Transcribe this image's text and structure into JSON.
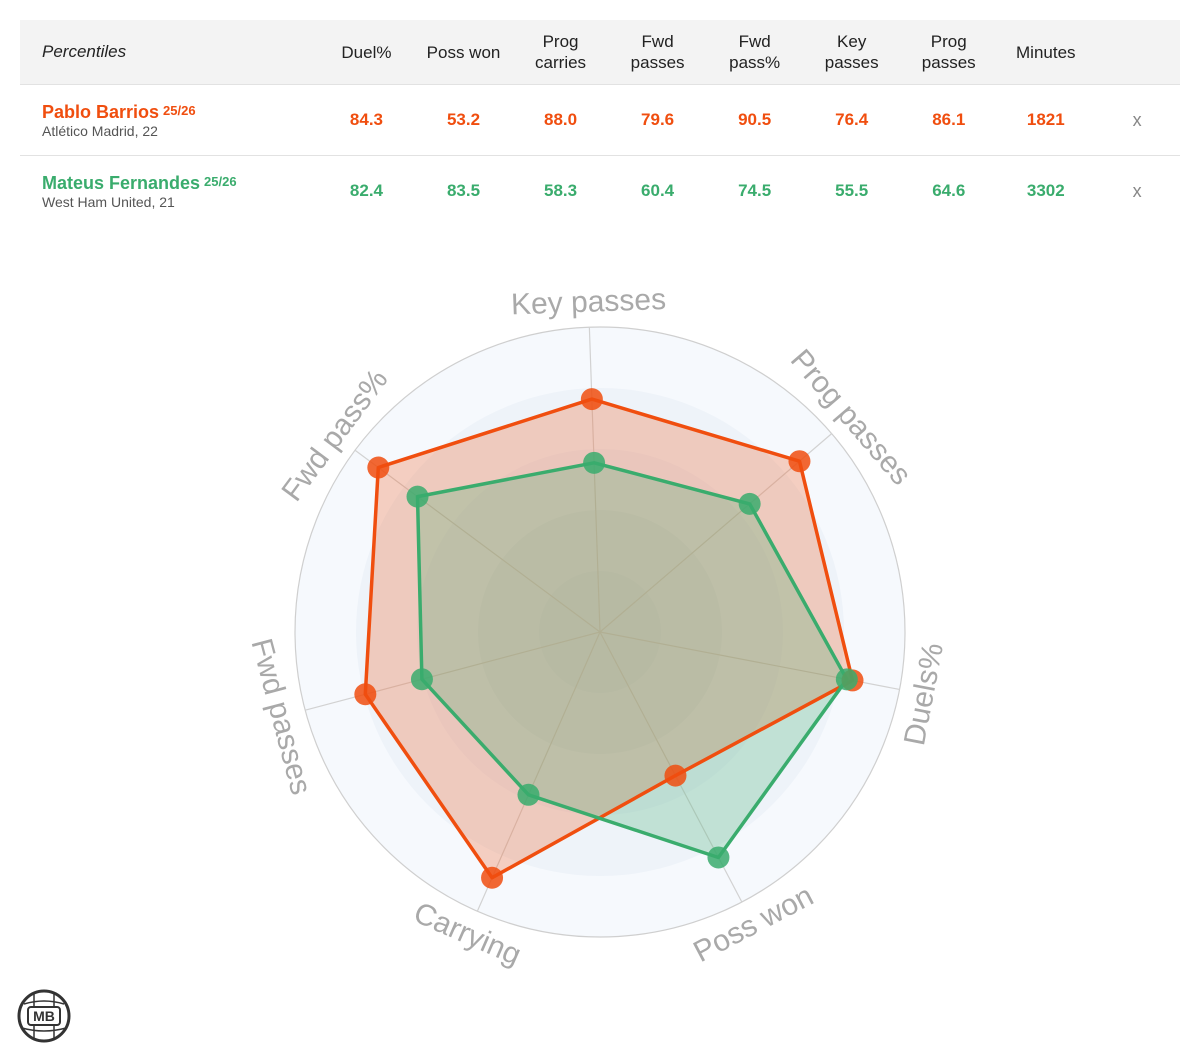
{
  "table": {
    "corner_label": "Percentiles",
    "headers": [
      [
        "Duel%"
      ],
      [
        "Poss won"
      ],
      [
        "Prog",
        "carries"
      ],
      [
        "Fwd",
        "passes"
      ],
      [
        "Fwd",
        "pass%"
      ],
      [
        "Key",
        "passes"
      ],
      [
        "Prog",
        "passes"
      ],
      [
        "Minutes"
      ]
    ],
    "players": [
      {
        "name": "Pablo Barrios",
        "season": "25/26",
        "team": "Atlético Madrid, 22",
        "values": [
          "84.3",
          "53.2",
          "88.0",
          "79.6",
          "90.5",
          "76.4",
          "86.1",
          "1821"
        ],
        "remove": "x",
        "color": "#f04e0f"
      },
      {
        "name": "Mateus Fernandes",
        "season": "25/26",
        "team": "West Ham United, 21",
        "values": [
          "82.4",
          "83.5",
          "58.3",
          "60.4",
          "74.5",
          "55.5",
          "64.6",
          "3302"
        ],
        "remove": "x",
        "color": "#3aac6d"
      }
    ]
  },
  "chart_data": {
    "type": "radar",
    "range": [
      0,
      100
    ],
    "axes": [
      "Key passes",
      "Prog passes",
      "Duels%",
      "Poss won",
      "Carrying",
      "Fwd passes",
      "Fwd pass%"
    ],
    "series": [
      {
        "name": "Pablo Barrios",
        "color": "#f04e0f",
        "values": [
          76.4,
          86.1,
          84.3,
          53.2,
          88.0,
          79.6,
          90.5
        ]
      },
      {
        "name": "Mateus Fernandes",
        "color": "#3aac6d",
        "values": [
          55.5,
          64.6,
          82.4,
          83.5,
          58.3,
          60.4,
          74.5
        ]
      }
    ],
    "grid": true
  },
  "logo_text": "MB"
}
